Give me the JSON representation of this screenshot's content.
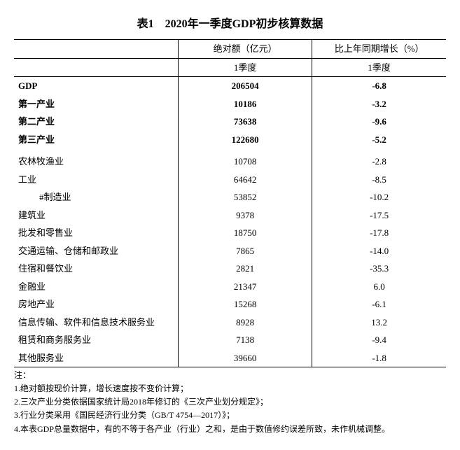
{
  "title": "表1　2020年一季度GDP初步核算数据",
  "headers": {
    "col1_top": "绝对额（亿元）",
    "col2_top": "比上年同期增长（%）",
    "col1_sub": "1季度",
    "col2_sub": "1季度"
  },
  "section1": [
    {
      "label": "GDP",
      "v1": "206504",
      "v2": "-6.8",
      "bold": true
    },
    {
      "label": "第一产业",
      "v1": "10186",
      "v2": "-3.2",
      "bold": true
    },
    {
      "label": "第二产业",
      "v1": "73638",
      "v2": "-9.6",
      "bold": true
    },
    {
      "label": "第三产业",
      "v1": "122680",
      "v2": "-5.2",
      "bold": true
    }
  ],
  "section2": [
    {
      "label": "农林牧渔业",
      "v1": "10708",
      "v2": "-2.8"
    },
    {
      "label": "工业",
      "v1": "64642",
      "v2": "-8.5"
    },
    {
      "label": "#制造业",
      "v1": "53852",
      "v2": "-10.2",
      "indent": 2
    },
    {
      "label": "建筑业",
      "v1": "9378",
      "v2": "-17.5"
    },
    {
      "label": "批发和零售业",
      "v1": "18750",
      "v2": "-17.8"
    },
    {
      "label": "交通运输、仓储和邮政业",
      "v1": "7865",
      "v2": "-14.0"
    },
    {
      "label": "住宿和餐饮业",
      "v1": "2821",
      "v2": "-35.3"
    },
    {
      "label": "金融业",
      "v1": "21347",
      "v2": "6.0"
    },
    {
      "label": "房地产业",
      "v1": "15268",
      "v2": "-6.1"
    },
    {
      "label": "信息传输、软件和信息技术服务业",
      "v1": "8928",
      "v2": "13.2"
    },
    {
      "label": "租赁和商务服务业",
      "v1": "7138",
      "v2": "-9.4"
    },
    {
      "label": "其他服务业",
      "v1": "39660",
      "v2": "-1.8"
    }
  ],
  "notes_label": "注：",
  "notes": [
    "1.绝对额按现价计算，增长速度按不变价计算；",
    "2.三次产业分类依据国家统计局2018年修订的《三次产业划分规定》；",
    "3.行业分类采用《国民经济行业分类（GB/T 4754—2017）》；",
    "4.本表GDP总量数据中，有的不等于各产业（行业）之和，是由于数值修约误差所致，未作机械调整。"
  ]
}
